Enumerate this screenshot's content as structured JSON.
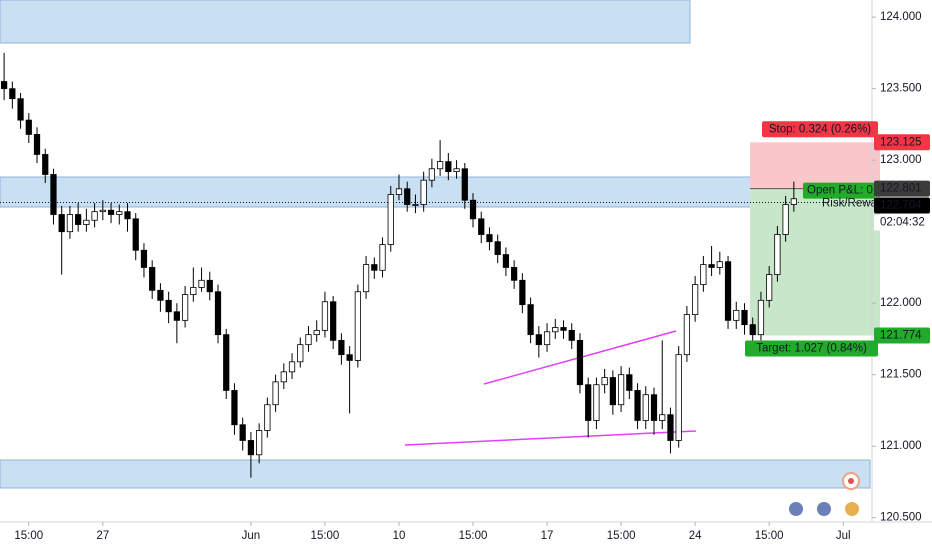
{
  "chart_data": {
    "type": "candlestick",
    "categories": [
      null,
      null,
      null,
      "15:00",
      null,
      null,
      null,
      null,
      null,
      null,
      null,
      null,
      "27",
      null,
      null,
      null,
      null,
      null,
      null,
      null,
      null,
      null,
      null,
      null,
      null,
      null,
      null,
      null,
      null,
      null,
      "Jun",
      null,
      null,
      null,
      null,
      null,
      null,
      null,
      null,
      "15:00",
      null,
      null,
      null,
      null,
      null,
      null,
      null,
      null,
      "10",
      null,
      null,
      null,
      null,
      null,
      null,
      null,
      null,
      "15:00",
      null,
      null,
      null,
      null,
      null,
      null,
      null,
      null,
      "17",
      null,
      null,
      null,
      null,
      null,
      null,
      null,
      null,
      "15:00",
      null,
      null,
      null,
      null,
      null,
      null,
      null,
      null,
      "24",
      null,
      null,
      null,
      null,
      null,
      null,
      null,
      null,
      "15:00",
      null,
      null,
      null,
      null,
      null,
      null,
      null,
      null,
      "Jul",
      null,
      null,
      null
    ],
    "open": [
      123.55,
      123.5,
      123.43,
      123.28,
      123.18,
      123.04,
      122.9,
      122.62,
      122.5,
      122.62,
      122.55,
      122.58,
      122.64,
      122.65,
      122.62,
      122.64,
      122.59,
      122.37,
      122.25,
      122.09,
      122.02,
      121.94,
      121.88,
      122.06,
      122.11,
      122.16,
      122.08,
      121.78,
      121.39,
      121.15,
      121.04,
      120.94,
      121.11,
      121.29,
      121.45,
      121.52,
      121.59,
      121.71,
      121.78,
      121.81,
      122.01,
      121.74,
      121.64,
      121.6,
      122.08,
      122.27,
      122.23,
      122.41,
      122.76,
      122.8,
      122.69,
      122.69,
      122.86,
      122.94,
      122.99,
      122.92,
      122.94,
      122.72,
      122.59,
      122.48,
      122.43,
      122.34,
      122.25,
      122.16,
      121.99,
      121.78,
      121.71,
      121.8,
      121.83,
      121.81,
      121.74,
      121.43,
      121.18,
      121.43,
      121.48,
      121.29,
      121.5,
      121.39,
      121.18,
      121.36,
      121.18,
      121.22,
      121.04,
      121.64,
      121.92,
      122.13,
      122.27,
      122.25,
      122.29,
      121.88,
      121.95,
      121.85,
      121.78,
      122.02,
      122.2,
      122.48,
      122.69,
      null,
      null,
      null,
      null,
      null,
      null,
      null,
      null,
      null
    ],
    "high": [
      123.75,
      123.55,
      123.47,
      123.33,
      123.23,
      123.08,
      122.94,
      122.68,
      122.68,
      122.7,
      122.66,
      122.7,
      122.72,
      122.7,
      122.69,
      122.7,
      122.63,
      122.42,
      122.3,
      122.14,
      122.08,
      122.0,
      122.12,
      122.25,
      122.25,
      122.22,
      122.13,
      121.82,
      121.44,
      121.2,
      121.1,
      121.16,
      121.34,
      121.5,
      121.58,
      121.65,
      121.76,
      121.84,
      121.88,
      122.08,
      122.05,
      121.79,
      121.7,
      122.13,
      122.33,
      122.32,
      122.46,
      122.82,
      122.9,
      122.85,
      122.76,
      122.92,
      123.01,
      123.14,
      123.05,
      123.0,
      122.98,
      122.77,
      122.64,
      122.53,
      122.48,
      122.39,
      122.3,
      122.21,
      122.04,
      121.84,
      121.86,
      121.89,
      121.88,
      121.86,
      121.79,
      121.48,
      121.48,
      121.54,
      121.53,
      121.56,
      121.55,
      121.44,
      121.42,
      121.41,
      121.74,
      121.27,
      121.7,
      121.98,
      122.19,
      122.33,
      122.4,
      122.36,
      122.33,
      122.01,
      122.0,
      121.9,
      122.08,
      122.26,
      122.54,
      122.75,
      122.85,
      null,
      null,
      null,
      null,
      null,
      null,
      null,
      null,
      null
    ],
    "low": [
      123.42,
      123.36,
      123.22,
      123.12,
      122.98,
      122.84,
      122.55,
      122.2,
      122.45,
      122.5,
      122.5,
      122.53,
      122.58,
      122.56,
      122.55,
      122.5,
      122.3,
      122.18,
      122.03,
      121.94,
      121.86,
      121.72,
      121.83,
      122.01,
      122.08,
      122.02,
      121.72,
      121.33,
      121.08,
      120.97,
      120.78,
      120.88,
      121.06,
      121.24,
      121.4,
      121.47,
      121.55,
      121.66,
      121.73,
      121.76,
      121.68,
      121.57,
      121.23,
      121.55,
      122.03,
      122.17,
      122.18,
      122.36,
      122.72,
      122.64,
      122.63,
      122.64,
      122.81,
      122.89,
      122.86,
      122.87,
      122.66,
      122.53,
      122.42,
      122.37,
      122.28,
      122.19,
      122.1,
      121.93,
      121.72,
      121.62,
      121.66,
      121.75,
      121.75,
      121.68,
      121.37,
      121.06,
      121.12,
      121.37,
      121.22,
      121.24,
      121.33,
      121.12,
      121.12,
      121.08,
      121.12,
      120.95,
      120.99,
      121.59,
      121.87,
      122.08,
      122.19,
      122.2,
      121.82,
      121.82,
      121.78,
      121.65,
      121.74,
      121.97,
      122.15,
      122.43,
      122.64,
      null,
      null,
      null,
      null,
      null,
      null,
      null,
      null,
      null
    ],
    "close": [
      123.5,
      123.43,
      123.28,
      123.18,
      123.04,
      122.9,
      122.62,
      122.5,
      122.62,
      122.55,
      122.58,
      122.64,
      122.65,
      122.62,
      122.64,
      122.59,
      122.37,
      122.25,
      122.09,
      122.02,
      121.94,
      121.88,
      122.06,
      122.11,
      122.16,
      122.08,
      121.78,
      121.39,
      121.15,
      121.04,
      120.94,
      121.11,
      121.29,
      121.45,
      121.52,
      121.59,
      121.71,
      121.78,
      121.81,
      122.01,
      121.74,
      121.64,
      121.6,
      122.08,
      122.27,
      122.23,
      122.41,
      122.76,
      122.8,
      122.69,
      122.69,
      122.86,
      122.94,
      122.99,
      122.92,
      122.94,
      122.72,
      122.59,
      122.48,
      122.43,
      122.34,
      122.25,
      122.16,
      121.99,
      121.78,
      121.71,
      121.8,
      121.83,
      121.81,
      121.74,
      121.43,
      121.18,
      121.43,
      121.48,
      121.29,
      121.5,
      121.39,
      121.18,
      121.36,
      121.18,
      121.22,
      121.04,
      121.64,
      121.92,
      122.13,
      122.27,
      122.25,
      122.29,
      121.88,
      121.95,
      121.85,
      121.78,
      122.02,
      122.2,
      122.48,
      122.69,
      122.73,
      null,
      null,
      null,
      null,
      null,
      null,
      null,
      null,
      null
    ],
    "up_color": "#ffffff",
    "down_color": "#000000",
    "ylim": [
      120.47,
      124.12
    ],
    "yticks": [
      {
        "value": 120.5,
        "label": "120.500"
      },
      {
        "value": 121,
        "label": "121.000"
      },
      {
        "value": 121.5,
        "label": "121.500"
      },
      {
        "value": 122,
        "label": "122.000"
      },
      {
        "value": 123,
        "label": "123.000"
      },
      {
        "value": 123.5,
        "label": "123.500"
      },
      {
        "value": 124,
        "label": "124.000"
      }
    ],
    "grid": false,
    "stop_price": 123.125,
    "stop_label": "Stop: 0.324 (0.26%)",
    "entry_price": 122.801,
    "pnl_label": "Open P&L: 0",
    "rr_label": "Risk/Rewa",
    "current_price": 122.704,
    "countdown": "02:04:32",
    "target_price": 121.774,
    "target_label": "Target: 1.027 (0.84%)"
  }
}
